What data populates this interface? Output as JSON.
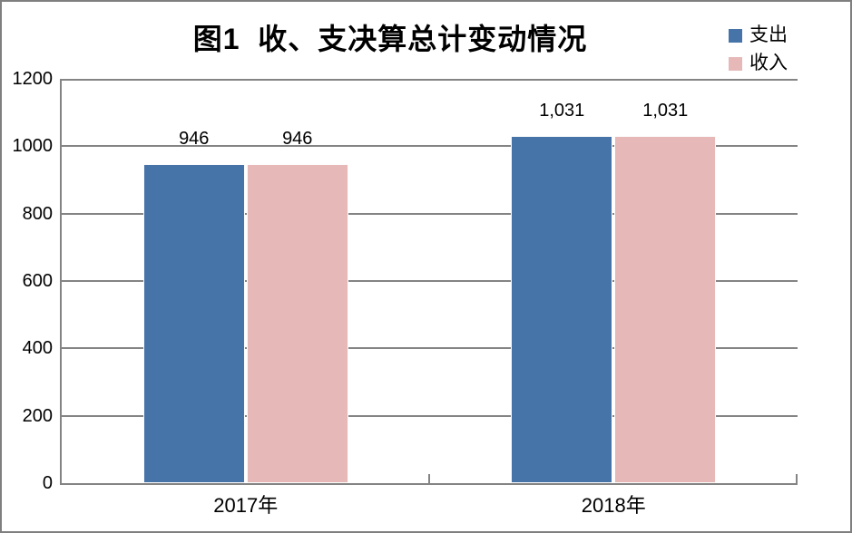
{
  "chart_data": {
    "type": "bar",
    "title": "图1  收、支决算总计变动情况",
    "categories": [
      "2017年",
      "2018年"
    ],
    "series": [
      {
        "key": "expenditure",
        "name": "支出",
        "values": [
          946,
          1031
        ],
        "labels": [
          "946",
          "1,031"
        ],
        "color": "#4673A8"
      },
      {
        "key": "income",
        "name": "收入",
        "values": [
          946,
          1031
        ],
        "labels": [
          "946",
          "1,031"
        ],
        "color": "#E6B9B8"
      }
    ],
    "ylim": [
      0,
      1200
    ],
    "yticks": [
      0,
      200,
      400,
      600,
      800,
      1000,
      1200
    ],
    "xlabel": "",
    "ylabel": "",
    "grid": true,
    "legend_position": "top-right",
    "colors": {
      "axis": "#848484",
      "gridline": "#848484",
      "frame_border": "#7f7f7f",
      "background": "#ffffff",
      "text": "#000000"
    }
  }
}
